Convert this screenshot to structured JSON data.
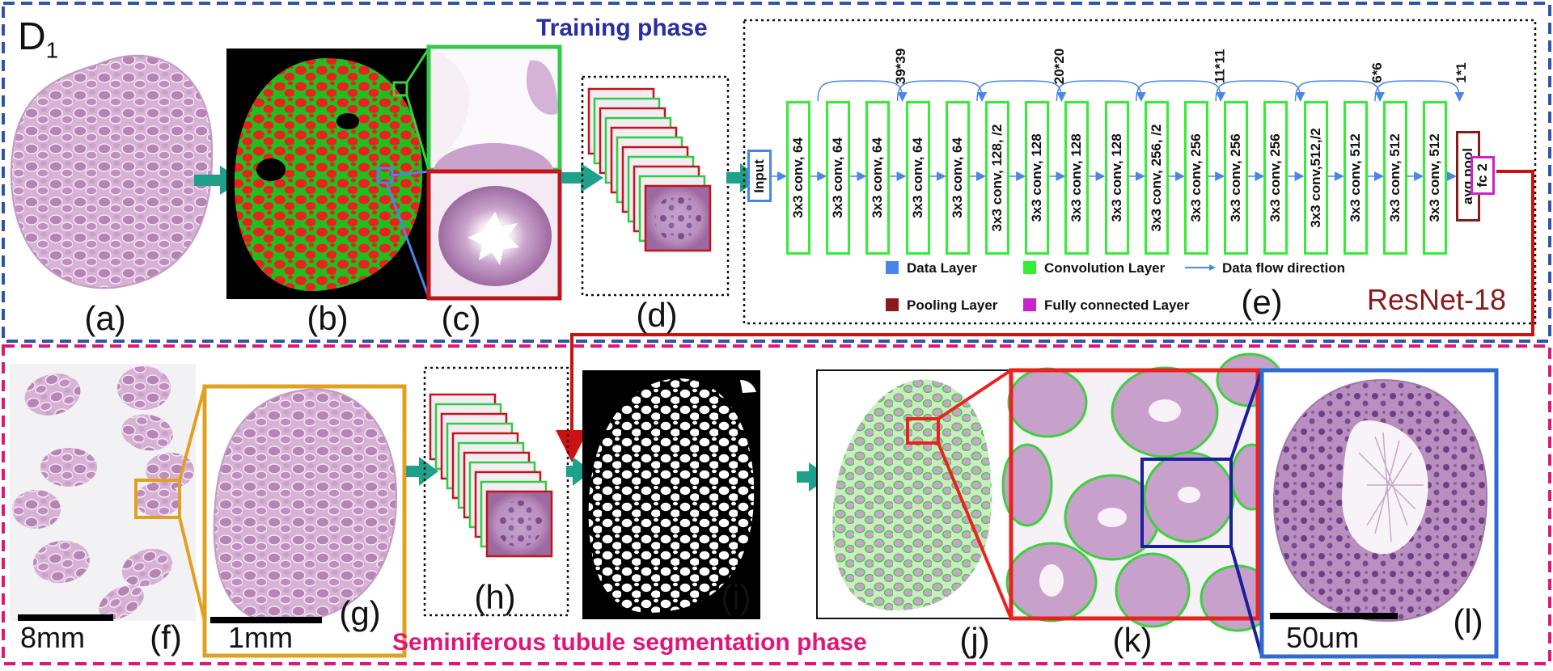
{
  "panels": {
    "a": "(a)",
    "b": "(b)",
    "c": "(c)",
    "d": "(d)",
    "e": "(e)",
    "f": "(f)",
    "g": "(g)",
    "h": "(h)",
    "i": "(i)",
    "j": "(j)",
    "k": "(k)",
    "l": "(l)"
  },
  "dataset_label": {
    "main": "D",
    "sub": "1"
  },
  "training_title": "Training phase",
  "segmentation_title": "Seminiferous tubule segmentation phase",
  "network_name": "ResNet-18",
  "network": {
    "input": "Input",
    "conv_blocks": [
      "3x3 conv, 64",
      "3x3 conv, 64",
      "3x3 conv, 64",
      "3x3 conv, 64",
      "3x3 conv, 64",
      "3x3 conv, 128, /2",
      "3x3 conv, 128",
      "3x3 conv, 128",
      "3x3 conv, 128",
      "3x3 conv, 256, /2",
      "3x3 conv, 256",
      "3x3 conv, 256",
      "3x3 conv, 256",
      "3x3 conv,512,/2",
      "3x3 conv, 512",
      "3x3 conv, 512",
      "3x3 conv, 512"
    ],
    "pool": "avg pool",
    "fc": "fc 2",
    "dims": [
      "39*39",
      "20*20",
      "11*11",
      "6*6",
      "1*1"
    ]
  },
  "legend": {
    "data_layer": "Data Layer",
    "conv_layer": "Convolution Layer",
    "flow": "Data flow direction",
    "pool_layer": "Pooling Layer",
    "fc_layer": "Fully connected Layer"
  },
  "scale_bars": {
    "f": "8mm",
    "g": "1mm",
    "l": "50um"
  },
  "colors": {
    "training_border": "#2f55a8",
    "segmentation_border": "#e0157a",
    "conv": "#33ee33",
    "data": "#4a86e8",
    "pool": "#8b1a1a",
    "fc": "#cc22cc",
    "tissue": "#c79ac4",
    "tubule_red": "#e8231f",
    "tubule_green": "#3bd23b",
    "connector": "#cc1111",
    "orange_frame": "#e0a020",
    "flow_arrow": "#1fa08a",
    "resnet_text": "#8b1a1a"
  }
}
